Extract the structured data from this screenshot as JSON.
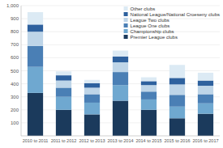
{
  "chart_data": {
    "type": "bar",
    "stacked": true,
    "categories": [
      "2010 to 2011",
      "2011 to 2012",
      "2012 to 2013",
      "2013 to 2014",
      "2014 to 2015",
      "2015 to 2016",
      "2016 to 2017"
    ],
    "series": [
      {
        "name": "Premier League clubs",
        "color": "#1b3a5c",
        "values": [
          330,
          200,
          165,
          270,
          200,
          135,
          170
        ]
      },
      {
        "name": "Championship clubs",
        "color": "#6fa8d0",
        "values": [
          200,
          100,
          90,
          120,
          80,
          90,
          80
        ]
      },
      {
        "name": "League One clubs",
        "color": "#4a7fb5",
        "values": [
          160,
          70,
          65,
          100,
          60,
          90,
          70
        ]
      },
      {
        "name": "League Two clubs",
        "color": "#bed5e8",
        "values": [
          110,
          55,
          50,
          75,
          50,
          80,
          65
        ]
      },
      {
        "name": "National League/National Croeseny clubs",
        "color": "#2e619e",
        "values": [
          55,
          40,
          35,
          45,
          30,
          50,
          40
        ]
      },
      {
        "name": "Other clubs",
        "color": "#dceaf4",
        "values": [
          95,
          30,
          25,
          45,
          30,
          100,
          60
        ]
      }
    ],
    "ylim": [
      0,
      1000
    ],
    "yticks": [
      100,
      200,
      300,
      400,
      500,
      600,
      700,
      800,
      900,
      {
        "value": 1000,
        "label": "1,000"
      }
    ],
    "grid": true,
    "legend": "upper right"
  }
}
